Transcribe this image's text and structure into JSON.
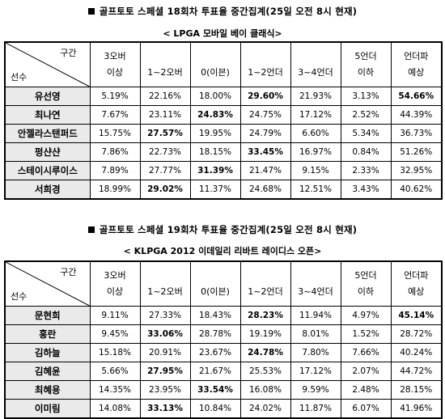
{
  "tables": [
    {
      "heading": "골프토토 스페셜 18회차 투표율 중간집계(25일 오전 8시 현재)",
      "subheading": "< LPGA 모바일 베이 클래식>",
      "corner_top": "구간",
      "corner_bottom": "선수",
      "columns": [
        {
          "top": "3오버",
          "bottom": "이상"
        },
        {
          "top": "",
          "bottom": "1~2오버"
        },
        {
          "top": "",
          "bottom": "0(이븐)"
        },
        {
          "top": "",
          "bottom": "1~2언더"
        },
        {
          "top": "",
          "bottom": "3~4언더"
        },
        {
          "top": "5언더",
          "bottom": "이하"
        },
        {
          "top": "언더파",
          "bottom": "예상"
        }
      ],
      "rows": [
        {
          "name": "유선영",
          "values": [
            "5.19%",
            "22.16%",
            "18.00%",
            "29.60%",
            "21.93%",
            "3.13%",
            "54.66%"
          ],
          "bold": [
            3,
            6
          ]
        },
        {
          "name": "최나연",
          "values": [
            "7.67%",
            "23.11%",
            "24.83%",
            "24.75%",
            "17.12%",
            "2.52%",
            "44.39%"
          ],
          "bold": [
            2
          ]
        },
        {
          "name": "안젤라스탠퍼드",
          "values": [
            "15.75%",
            "27.57%",
            "19.95%",
            "24.79%",
            "6.60%",
            "5.34%",
            "36.73%"
          ],
          "bold": [
            1
          ]
        },
        {
          "name": "펑샨샨",
          "values": [
            "7.86%",
            "22.73%",
            "18.15%",
            "33.45%",
            "16.97%",
            "0.84%",
            "51.26%"
          ],
          "bold": [
            3
          ]
        },
        {
          "name": "스테이시루이스",
          "values": [
            "7.89%",
            "27.77%",
            "31.39%",
            "21.47%",
            "9.15%",
            "2.33%",
            "32.95%"
          ],
          "bold": [
            2
          ]
        },
        {
          "name": "서희경",
          "values": [
            "18.99%",
            "29.02%",
            "11.37%",
            "24.68%",
            "12.51%",
            "3.43%",
            "40.62%"
          ],
          "bold": [
            1
          ]
        }
      ]
    },
    {
      "heading": "골프토토 스페셜 19회차 투표율 중간집계(25일 오전 8시 현재)",
      "subheading": "< KLPGA 2012 이데일리 리바트 레이디스 오픈>",
      "corner_top": "구간",
      "corner_bottom": "선수",
      "columns": [
        {
          "top": "3오버",
          "bottom": "이상"
        },
        {
          "top": "",
          "bottom": "1~2오버"
        },
        {
          "top": "",
          "bottom": "0(이븐)"
        },
        {
          "top": "",
          "bottom": "1~2언더"
        },
        {
          "top": "",
          "bottom": "3~4언더"
        },
        {
          "top": "5언더",
          "bottom": "이하"
        },
        {
          "top": "언더파",
          "bottom": "예상"
        }
      ],
      "rows": [
        {
          "name": "문현희",
          "values": [
            "9.11%",
            "27.33%",
            "18.43%",
            "28.23%",
            "11.94%",
            "4.97%",
            "45.14%"
          ],
          "bold": [
            3,
            6
          ]
        },
        {
          "name": "홍란",
          "values": [
            "9.45%",
            "33.06%",
            "28.78%",
            "19.19%",
            "8.01%",
            "1.52%",
            "28.72%"
          ],
          "bold": [
            1
          ]
        },
        {
          "name": "김하늘",
          "values": [
            "15.18%",
            "20.91%",
            "23.67%",
            "24.78%",
            "7.80%",
            "7.66%",
            "40.24%"
          ],
          "bold": [
            3
          ]
        },
        {
          "name": "김혜윤",
          "values": [
            "5.66%",
            "27.95%",
            "21.67%",
            "25.53%",
            "17.12%",
            "2.07%",
            "44.72%"
          ],
          "bold": [
            1
          ]
        },
        {
          "name": "최혜용",
          "values": [
            "14.35%",
            "23.95%",
            "33.54%",
            "16.08%",
            "9.59%",
            "2.48%",
            "28.15%"
          ],
          "bold": [
            2
          ]
        },
        {
          "name": "이미림",
          "values": [
            "14.08%",
            "33.13%",
            "10.84%",
            "24.02%",
            "11.87%",
            "6.07%",
            "41.96%"
          ],
          "bold": [
            1
          ]
        }
      ]
    }
  ]
}
